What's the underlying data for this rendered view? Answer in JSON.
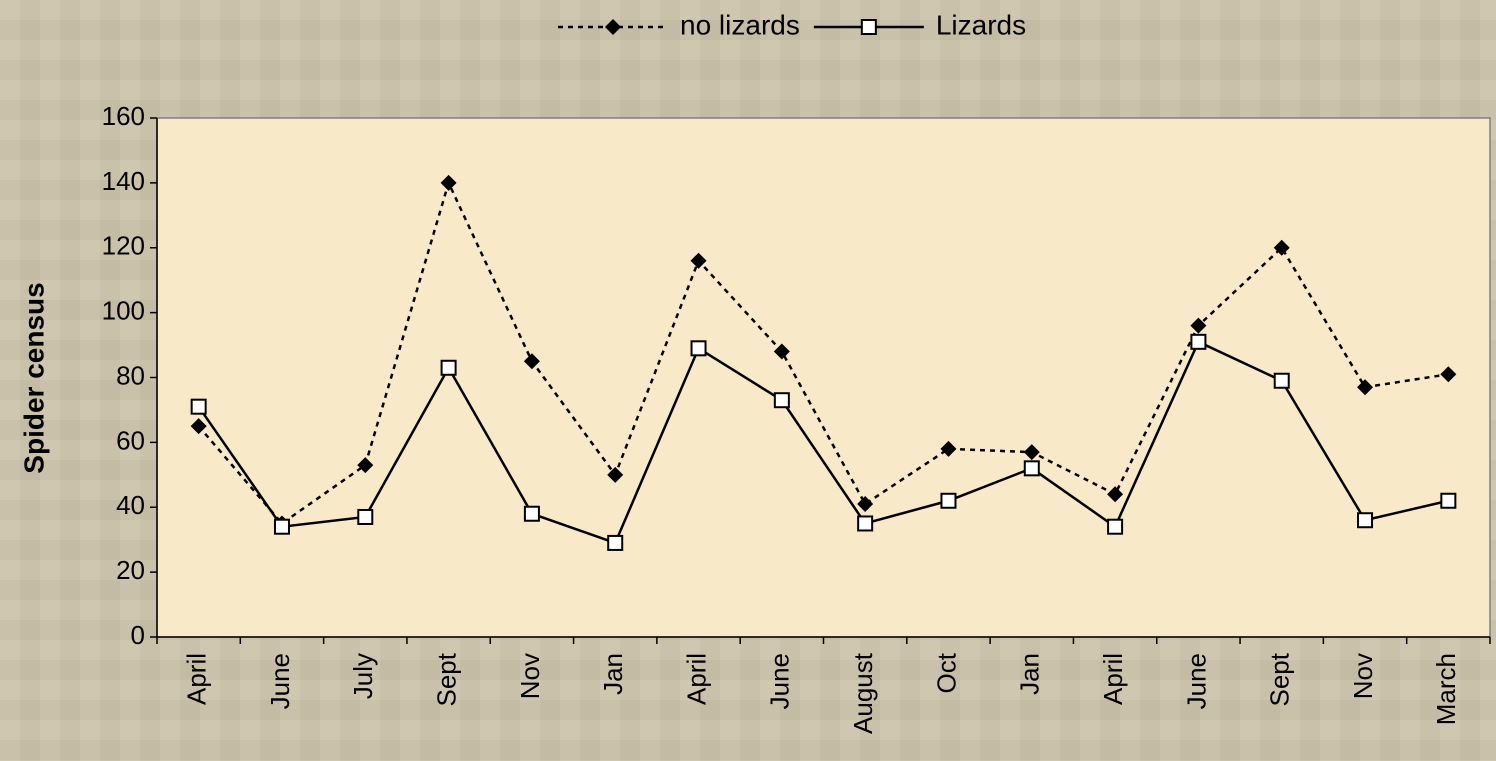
{
  "chart_data": {
    "type": "line",
    "y_label": "Spider census",
    "categories": [
      "April",
      "June",
      "July",
      "Sept",
      "Nov",
      "Jan",
      "April",
      "June",
      "August",
      "Oct",
      "Jan",
      "April",
      "June",
      "Sept",
      "Nov",
      "March"
    ],
    "series": [
      {
        "name": "no lizards",
        "color": "#000000",
        "line_style": "dashed",
        "marker": "diamond",
        "values": [
          65,
          35,
          53,
          140,
          85,
          50,
          116,
          88,
          41,
          58,
          57,
          44,
          96,
          120,
          77,
          81
        ]
      },
      {
        "name": "Lizards",
        "color": "#000000",
        "line_style": "solid",
        "marker": "square",
        "values": [
          71,
          34,
          37,
          83,
          38,
          29,
          89,
          73,
          35,
          42,
          52,
          34,
          91,
          79,
          36,
          42
        ]
      }
    ],
    "ylim": [
      0,
      160
    ],
    "yticks": [
      0,
      20,
      40,
      60,
      80,
      100,
      120,
      140,
      160
    ],
    "grid": false,
    "legend": "top"
  }
}
